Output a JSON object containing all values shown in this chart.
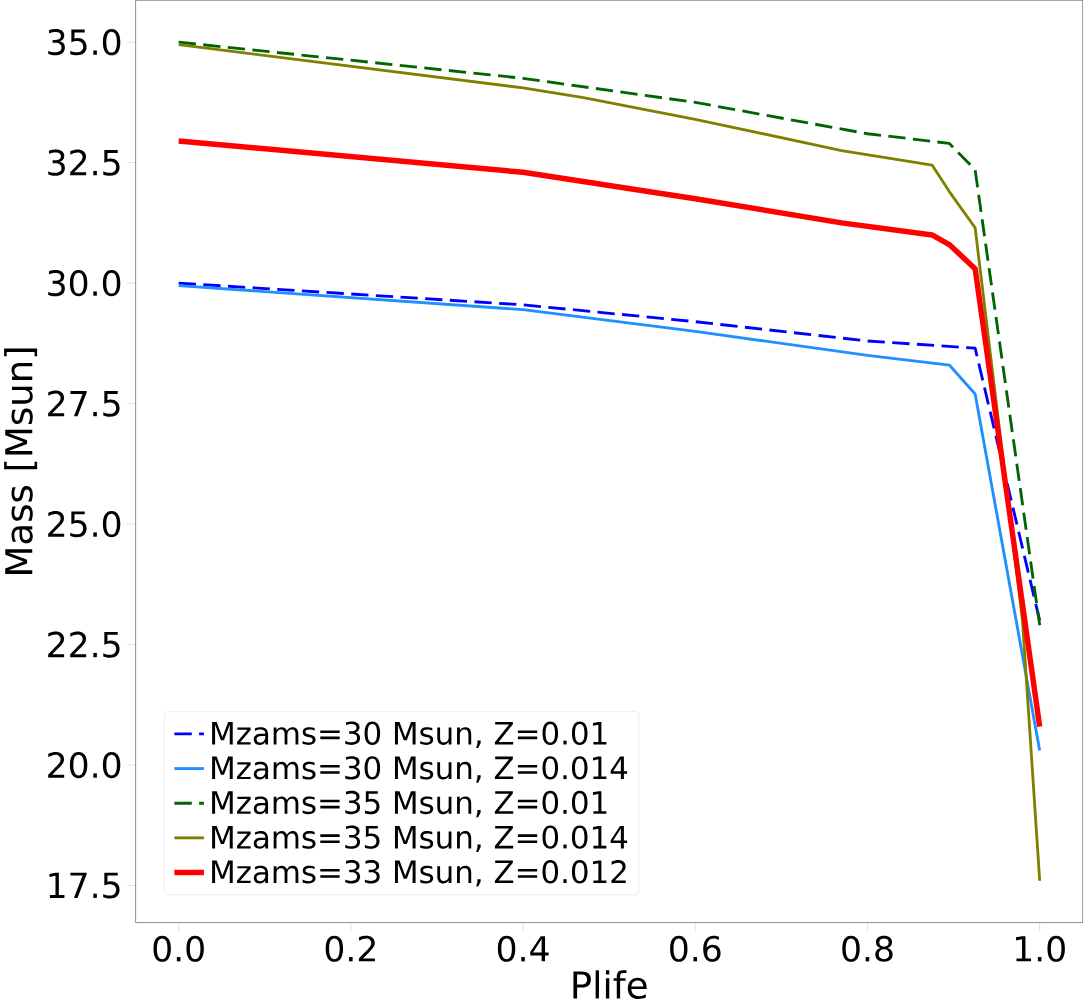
{
  "chart_data": {
    "type": "line",
    "xlabel": "Plife",
    "ylabel": "Mass [Msun]",
    "xlim": [
      -0.05,
      1.05
    ],
    "ylim": [
      16.73,
      35.87
    ],
    "xticks": [
      {
        "value": 0,
        "label": "0.0"
      },
      0.2,
      0.4,
      0.6,
      0.8,
      {
        "value": 1,
        "label": "1.0"
      }
    ],
    "yticks": [
      17.5,
      {
        "value": 20,
        "label": "20.0"
      },
      22.5,
      {
        "value": 25,
        "label": "25.0"
      },
      27.5,
      {
        "value": 30,
        "label": "30.0"
      },
      32.5,
      {
        "value": 35,
        "label": "35.0"
      }
    ],
    "grid": false,
    "legend": "bottom left",
    "series": [
      {
        "name": "Mzams=30 Msun, Z=0.01",
        "color": "#0000ff",
        "line_style": "dashed",
        "x": [
          0,
          0.4,
          0.6,
          0.8,
          0.925,
          1.0
        ],
        "values": [
          30.0,
          29.55,
          29.2,
          28.8,
          28.65,
          23.0
        ]
      },
      {
        "name": "Mzams=30 Msun, Z=0.014",
        "color": "#1e90ff",
        "line_style": "solid",
        "x": [
          0,
          0.4,
          0.6,
          0.8,
          0.895,
          0.925,
          1.0
        ],
        "values": [
          29.95,
          29.45,
          29.0,
          28.5,
          28.3,
          27.7,
          20.3
        ]
      },
      {
        "name": "Mzams=35 Msun, Z=0.01",
        "color": "#006400",
        "line_style": "dashed",
        "x": [
          0,
          0.4,
          0.6,
          0.8,
          0.895,
          0.925,
          1.0
        ],
        "values": [
          35.0,
          34.25,
          33.75,
          33.1,
          32.9,
          32.35,
          22.9
        ]
      },
      {
        "name": "Mzams=35 Msun, Z=0.014",
        "color": "#808000",
        "line_style": "solid",
        "x": [
          0,
          0.4,
          0.47,
          0.6,
          0.77,
          0.875,
          0.895,
          0.925,
          0.98,
          1.0
        ],
        "values": [
          34.95,
          34.05,
          33.85,
          33.4,
          32.75,
          32.45,
          31.9,
          31.15,
          23.0,
          17.6
        ]
      },
      {
        "name": "Mzams=33 Msun, Z=0.012",
        "color": "#ff0000",
        "line_style": "solid",
        "x": [
          0,
          0.4,
          0.6,
          0.77,
          0.875,
          0.895,
          0.925,
          1.0
        ],
        "values": [
          32.95,
          32.3,
          31.75,
          31.25,
          31.0,
          30.8,
          30.3,
          20.8
        ]
      }
    ]
  }
}
